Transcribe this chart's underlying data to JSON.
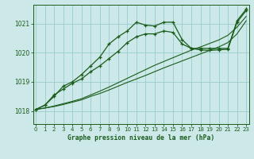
{
  "title": "Graphe pression niveau de la mer (hPa)",
  "background_color": "#cce8e8",
  "grid_color": "#99cccc",
  "line_color": "#1a5c1a",
  "marker_color": "#1a5c1a",
  "x_ticks": [
    0,
    1,
    2,
    3,
    4,
    5,
    6,
    7,
    8,
    9,
    10,
    11,
    12,
    13,
    14,
    15,
    16,
    17,
    18,
    19,
    20,
    21,
    22,
    23
  ],
  "y_ticks": [
    1018,
    1019,
    1020,
    1021
  ],
  "ylim": [
    1017.55,
    1021.65
  ],
  "xlim": [
    -0.3,
    23.3
  ],
  "series_straight1": [
    1018.05,
    1018.1,
    1018.15,
    1018.22,
    1018.3,
    1018.38,
    1018.5,
    1018.6,
    1018.72,
    1018.85,
    1018.98,
    1019.1,
    1019.22,
    1019.35,
    1019.48,
    1019.6,
    1019.72,
    1019.84,
    1019.96,
    1020.08,
    1020.2,
    1020.35,
    1020.65,
    1021.1
  ],
  "series_straight2": [
    1018.05,
    1018.1,
    1018.17,
    1018.25,
    1018.33,
    1018.42,
    1018.55,
    1018.68,
    1018.82,
    1018.97,
    1019.12,
    1019.27,
    1019.42,
    1019.57,
    1019.7,
    1019.83,
    1019.96,
    1020.09,
    1020.2,
    1020.32,
    1020.44,
    1020.6,
    1020.88,
    1021.25
  ],
  "series_mid_markers": [
    1018.05,
    1018.2,
    1018.55,
    1018.75,
    1018.95,
    1019.1,
    1019.35,
    1019.55,
    1019.8,
    1020.05,
    1020.35,
    1020.55,
    1020.65,
    1020.65,
    1020.75,
    1020.7,
    1020.3,
    1020.15,
    1020.1,
    1020.08,
    1020.1,
    1020.12,
    1021.05,
    1021.45
  ],
  "series_peak_markers": [
    1018.05,
    1018.2,
    1018.5,
    1018.85,
    1019.0,
    1019.25,
    1019.55,
    1019.85,
    1020.3,
    1020.55,
    1020.75,
    1021.05,
    1020.95,
    1020.92,
    1021.05,
    1021.05,
    1020.45,
    1020.15,
    1020.15,
    1020.15,
    1020.15,
    1020.15,
    1021.1,
    1021.5
  ]
}
